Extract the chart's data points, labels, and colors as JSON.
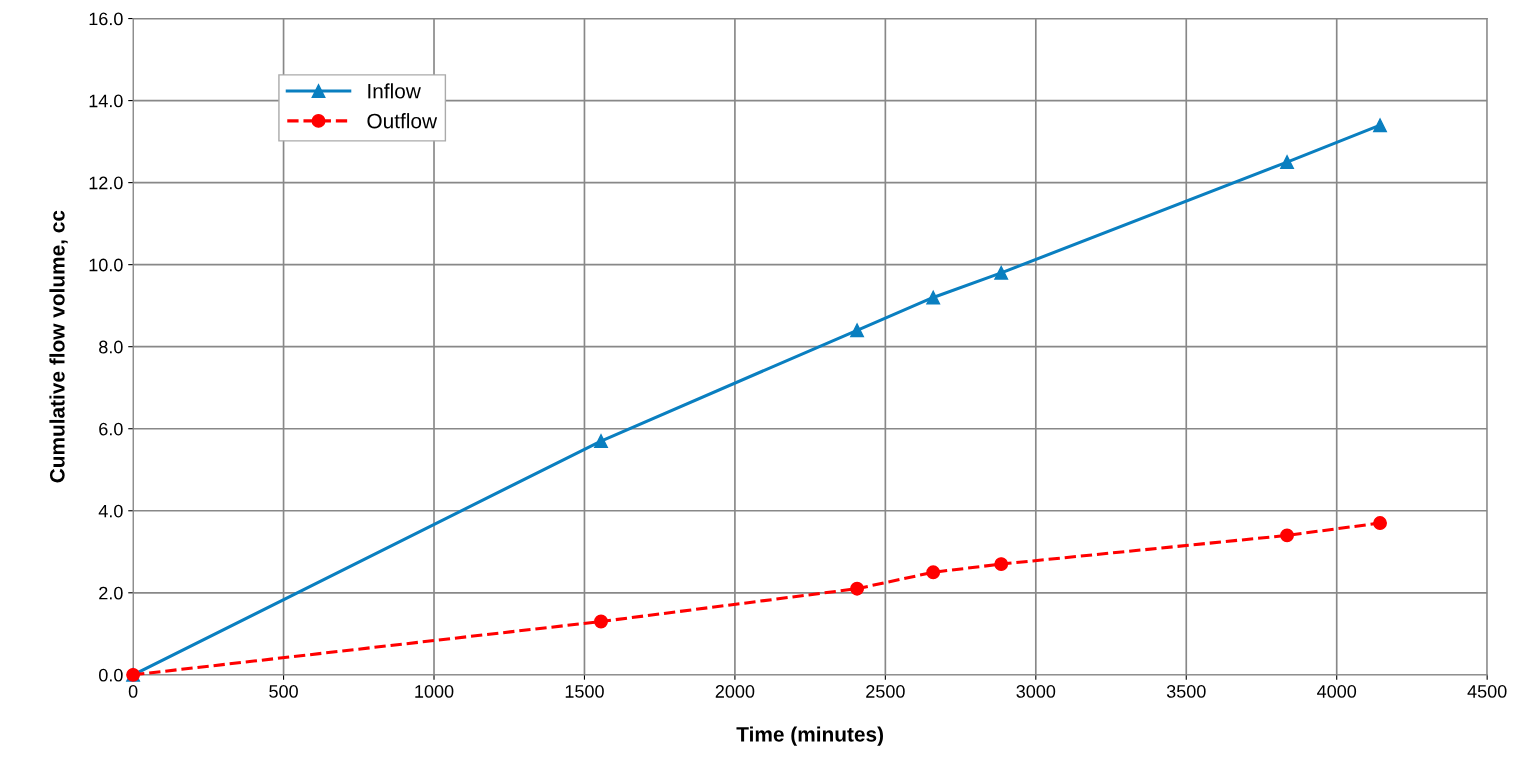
{
  "chart_data": {
    "type": "line",
    "xlabel": "Time (minutes)",
    "ylabel": "Cumulative flow volume, cc",
    "xlim": [
      0,
      4500
    ],
    "xticks": [
      0,
      500,
      1000,
      1500,
      2000,
      2500,
      3000,
      3500,
      4000,
      4500
    ],
    "ylim": [
      0,
      16
    ],
    "yticks": [
      {
        "value": 0,
        "label": "0.0"
      },
      {
        "value": 2,
        "label": "2.0"
      },
      {
        "value": 4,
        "label": "4.0"
      },
      {
        "value": 6,
        "label": "6.0"
      },
      {
        "value": 8,
        "label": "8.0"
      },
      {
        "value": 10,
        "label": "10.0"
      },
      {
        "value": 12,
        "label": "12.0"
      },
      {
        "value": 14,
        "label": "14.0"
      },
      {
        "value": 16,
        "label": "16.0"
      }
    ],
    "grid": true,
    "legend": "top left",
    "series": [
      {
        "name": "Inflow",
        "color": "#0a7fc0",
        "marker": "triangle",
        "line_style": "solid",
        "x": [
          0,
          1555,
          2406,
          2659,
          2885,
          3835,
          4144
        ],
        "values": [
          0,
          5.7,
          8.4,
          9.2,
          9.8,
          12.5,
          13.4
        ]
      },
      {
        "name": "Outflow",
        "color": "#ff0000",
        "marker": "circle",
        "line_style": "dashed",
        "x": [
          0,
          1555,
          2406,
          2659,
          2885,
          3835,
          4144
        ],
        "values": [
          0,
          1.3,
          2.1,
          2.5,
          2.7,
          3.4,
          3.7
        ]
      }
    ]
  }
}
